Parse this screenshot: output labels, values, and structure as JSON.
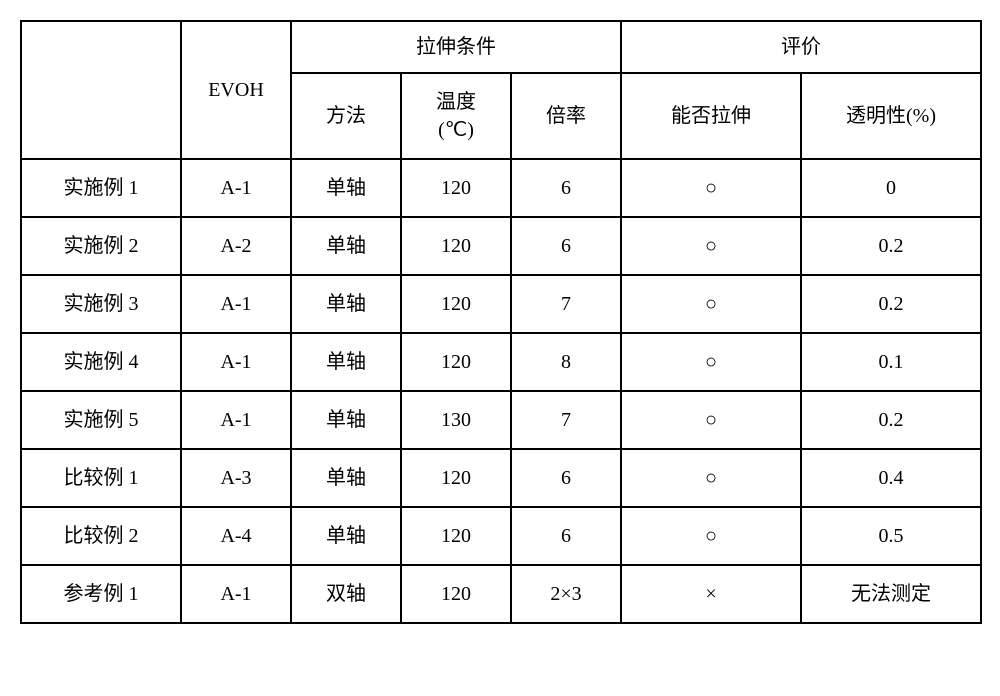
{
  "table": {
    "header": {
      "col_label": "",
      "col_evoh": "EVOH",
      "group_conditions": "拉伸条件",
      "group_evaluation": "评价",
      "col_method": "方法",
      "col_temp_label": "温度",
      "col_temp_unit": "(℃)",
      "col_rate": "倍率",
      "col_stretch": "能否拉伸",
      "col_trans": "透明性(%)"
    },
    "rows": [
      {
        "label": "实施例 1",
        "evoh": "A-1",
        "method": "单轴",
        "temp": "120",
        "rate": "6",
        "stretch": "○",
        "trans": "0"
      },
      {
        "label": "实施例 2",
        "evoh": "A-2",
        "method": "单轴",
        "temp": "120",
        "rate": "6",
        "stretch": "○",
        "trans": "0.2"
      },
      {
        "label": "实施例 3",
        "evoh": "A-1",
        "method": "单轴",
        "temp": "120",
        "rate": "7",
        "stretch": "○",
        "trans": "0.2"
      },
      {
        "label": "实施例 4",
        "evoh": "A-1",
        "method": "单轴",
        "temp": "120",
        "rate": "8",
        "stretch": "○",
        "trans": "0.1"
      },
      {
        "label": "实施例 5",
        "evoh": "A-1",
        "method": "单轴",
        "temp": "130",
        "rate": "7",
        "stretch": "○",
        "trans": "0.2"
      },
      {
        "label": "比较例 1",
        "evoh": "A-3",
        "method": "单轴",
        "temp": "120",
        "rate": "6",
        "stretch": "○",
        "trans": "0.4"
      },
      {
        "label": "比较例 2",
        "evoh": "A-4",
        "method": "单轴",
        "temp": "120",
        "rate": "6",
        "stretch": "○",
        "trans": "0.5"
      },
      {
        "label": "参考例 1",
        "evoh": "A-1",
        "method": "双轴",
        "temp": "120",
        "rate": "2×3",
        "stretch": "×",
        "trans": "无法测定"
      }
    ],
    "columns": [
      "label",
      "evoh",
      "method",
      "temp",
      "rate",
      "stretch",
      "trans"
    ]
  }
}
